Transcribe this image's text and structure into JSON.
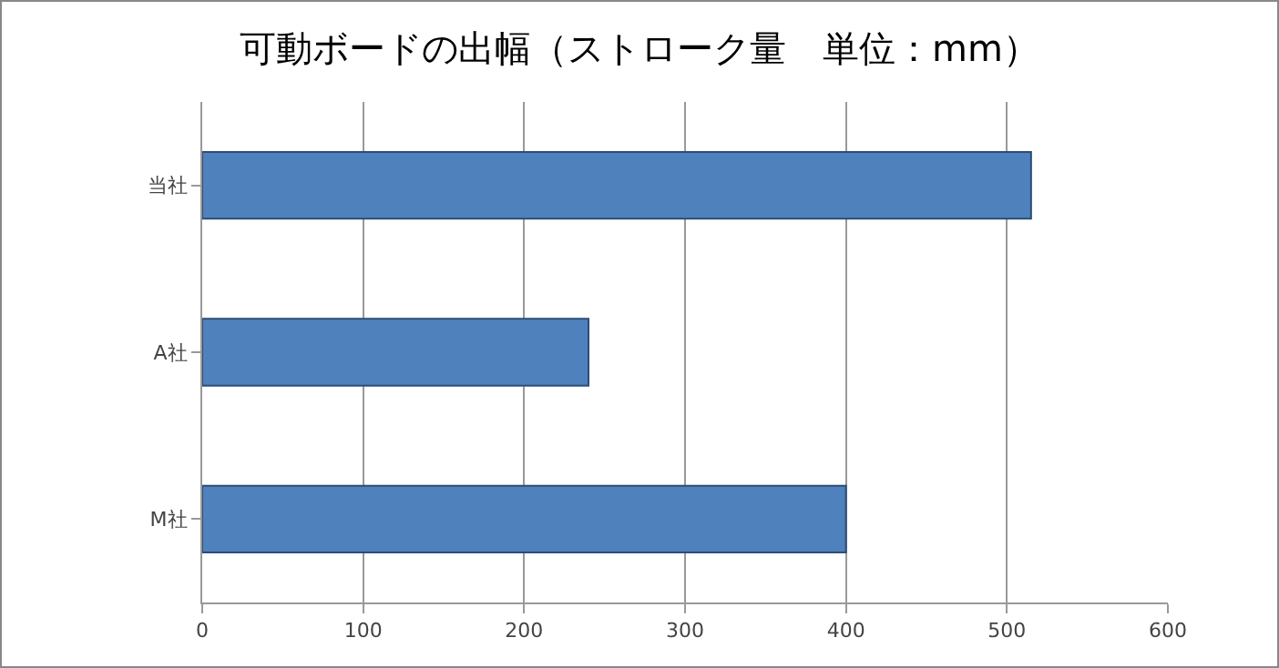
{
  "chart_data": {
    "type": "bar",
    "orientation": "horizontal",
    "title": "可動ボードの出幅（ストローク量　単位：mm）",
    "categories": [
      "当社",
      "A社",
      "M社"
    ],
    "values": [
      515,
      240,
      400
    ],
    "color": "#4f81bd",
    "xlim": [
      0,
      600
    ],
    "xticks": [
      0,
      100,
      200,
      300,
      400,
      500,
      600
    ],
    "grid": "x"
  }
}
